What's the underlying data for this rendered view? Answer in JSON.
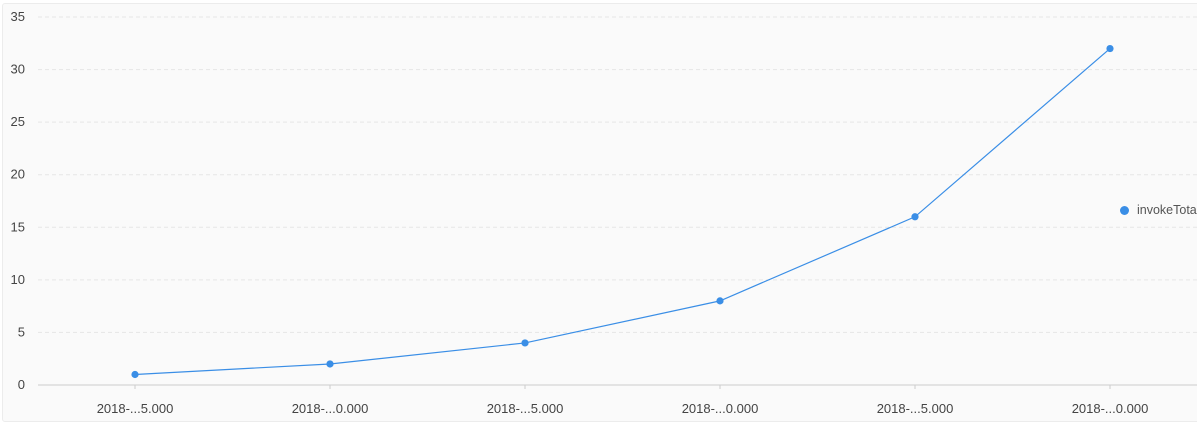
{
  "chart_data": {
    "type": "line",
    "categories": [
      "2018-...5.000",
      "2018-...0.000",
      "2018-...5.000",
      "2018-...0.000",
      "2018-...5.000",
      "2018-...0.000"
    ],
    "series": [
      {
        "name": "invokeTota",
        "values": [
          1,
          2,
          4,
          8,
          16,
          32
        ],
        "color": "#3a8ee6"
      }
    ],
    "yticks": [
      "0",
      "5",
      "10",
      "15",
      "20",
      "25",
      "30",
      "35"
    ],
    "ylim": [
      0,
      35
    ],
    "grid": true,
    "legend_position": "right",
    "xlabel": "",
    "ylabel": "",
    "title": ""
  }
}
